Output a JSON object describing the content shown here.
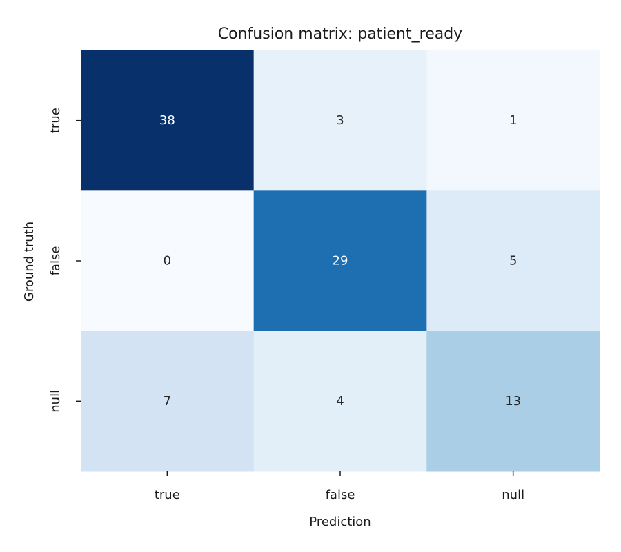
{
  "chart_data": {
    "type": "heatmap",
    "title": "Confusion matrix: patient_ready",
    "xlabel": "Prediction",
    "ylabel": "Ground truth",
    "x_categories": [
      "true",
      "false",
      "null"
    ],
    "y_categories": [
      "true",
      "false",
      "null"
    ],
    "values": [
      [
        38,
        3,
        1
      ],
      [
        0,
        29,
        5
      ],
      [
        7,
        4,
        13
      ]
    ],
    "colormap": "Blues",
    "vmin": 0,
    "vmax": 38,
    "colorbar": false,
    "grid": false,
    "colors": {
      "low": "#f7fbff",
      "high": "#08306b",
      "text_dark": "#262626",
      "text_light": "#ffffff"
    }
  }
}
